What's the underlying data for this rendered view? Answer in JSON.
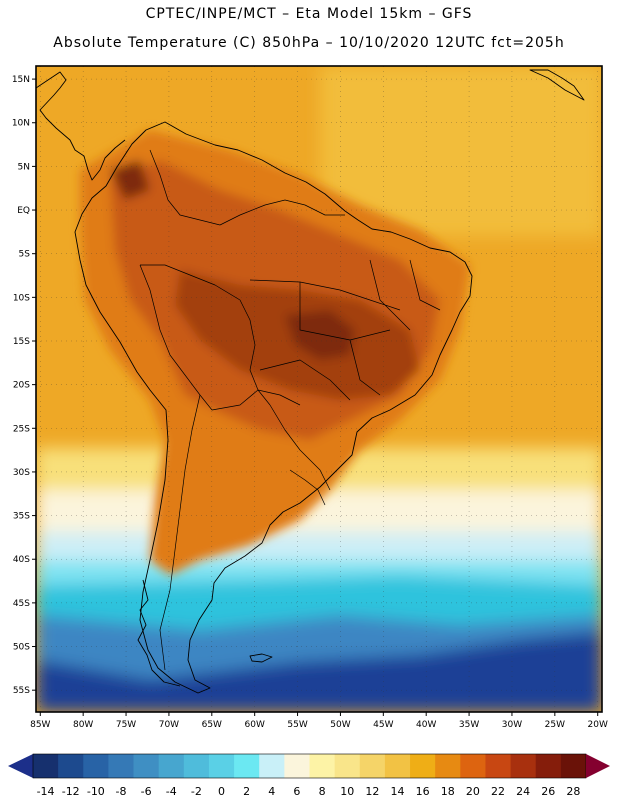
{
  "header": {
    "line1": "CPTEC/INPE/MCT –  Eta Model 15km – GFS",
    "line2": "Absolute Temperature (C) 850hPa – 10/10/2020 12UTC fct=205h"
  },
  "map": {
    "lat_labels": [
      "15N",
      "10N",
      "5N",
      "EQ",
      "5S",
      "10S",
      "15S",
      "20S",
      "25S",
      "30S",
      "35S",
      "40S",
      "45S",
      "50S",
      "55S"
    ],
    "lat_values": [
      15,
      10,
      5,
      0,
      -5,
      -10,
      -15,
      -20,
      -25,
      -30,
      -35,
      -40,
      -45,
      -50,
      -55
    ],
    "lon_labels": [
      "85W",
      "80W",
      "75W",
      "70W",
      "65W",
      "60W",
      "55W",
      "50W",
      "45W",
      "40W",
      "35W",
      "30W",
      "25W",
      "20W"
    ],
    "lon_values": [
      -85,
      -80,
      -75,
      -70,
      -65,
      -60,
      -55,
      -50,
      -45,
      -40,
      -35,
      -30,
      -25,
      -20
    ],
    "lat_range": [
      -57.5,
      16.5
    ],
    "lon_range": [
      -85.5,
      -19.5
    ]
  },
  "colorbar": {
    "labels": [
      "-14",
      "-12",
      "-10",
      "-8",
      "-6",
      "-4",
      "-2",
      "0",
      "2",
      "4",
      "6",
      "8",
      "10",
      "12",
      "14",
      "16",
      "18",
      "20",
      "22",
      "24",
      "26",
      "28"
    ],
    "colors": [
      "#16306e",
      "#1d4a8e",
      "#2863a6",
      "#3579b6",
      "#3f8fc3",
      "#47a6cf",
      "#4fbcdb",
      "#5ad0e6",
      "#6be8f2",
      "#c9f0f8",
      "#fbf5dc",
      "#fdf3a6",
      "#f9e58a",
      "#f5d468",
      "#f2c244",
      "#efae16",
      "#e78a12",
      "#dd6410",
      "#c84712",
      "#a8300e",
      "#851d0b",
      "#6a1208"
    ],
    "start_color": "#1c2f8a",
    "end_color": "#84002f"
  },
  "palette": {
    "ocean_deep": "#1c3f96",
    "ocean_mid": "#3c86c3",
    "ocean_cyan": "#2fc3dd",
    "ocean_light": "#7fe3f2",
    "pale": "#cdeef6",
    "cream": "#fbf4dc",
    "yellow": "#f8e07a",
    "gold": "#f2bd3a",
    "orange": "#eea826",
    "deep_orange": "#e07c17",
    "red_orange": "#c85a16",
    "brown": "#a3400f",
    "dark_brown": "#7e2a0b",
    "outline": "#000000"
  }
}
